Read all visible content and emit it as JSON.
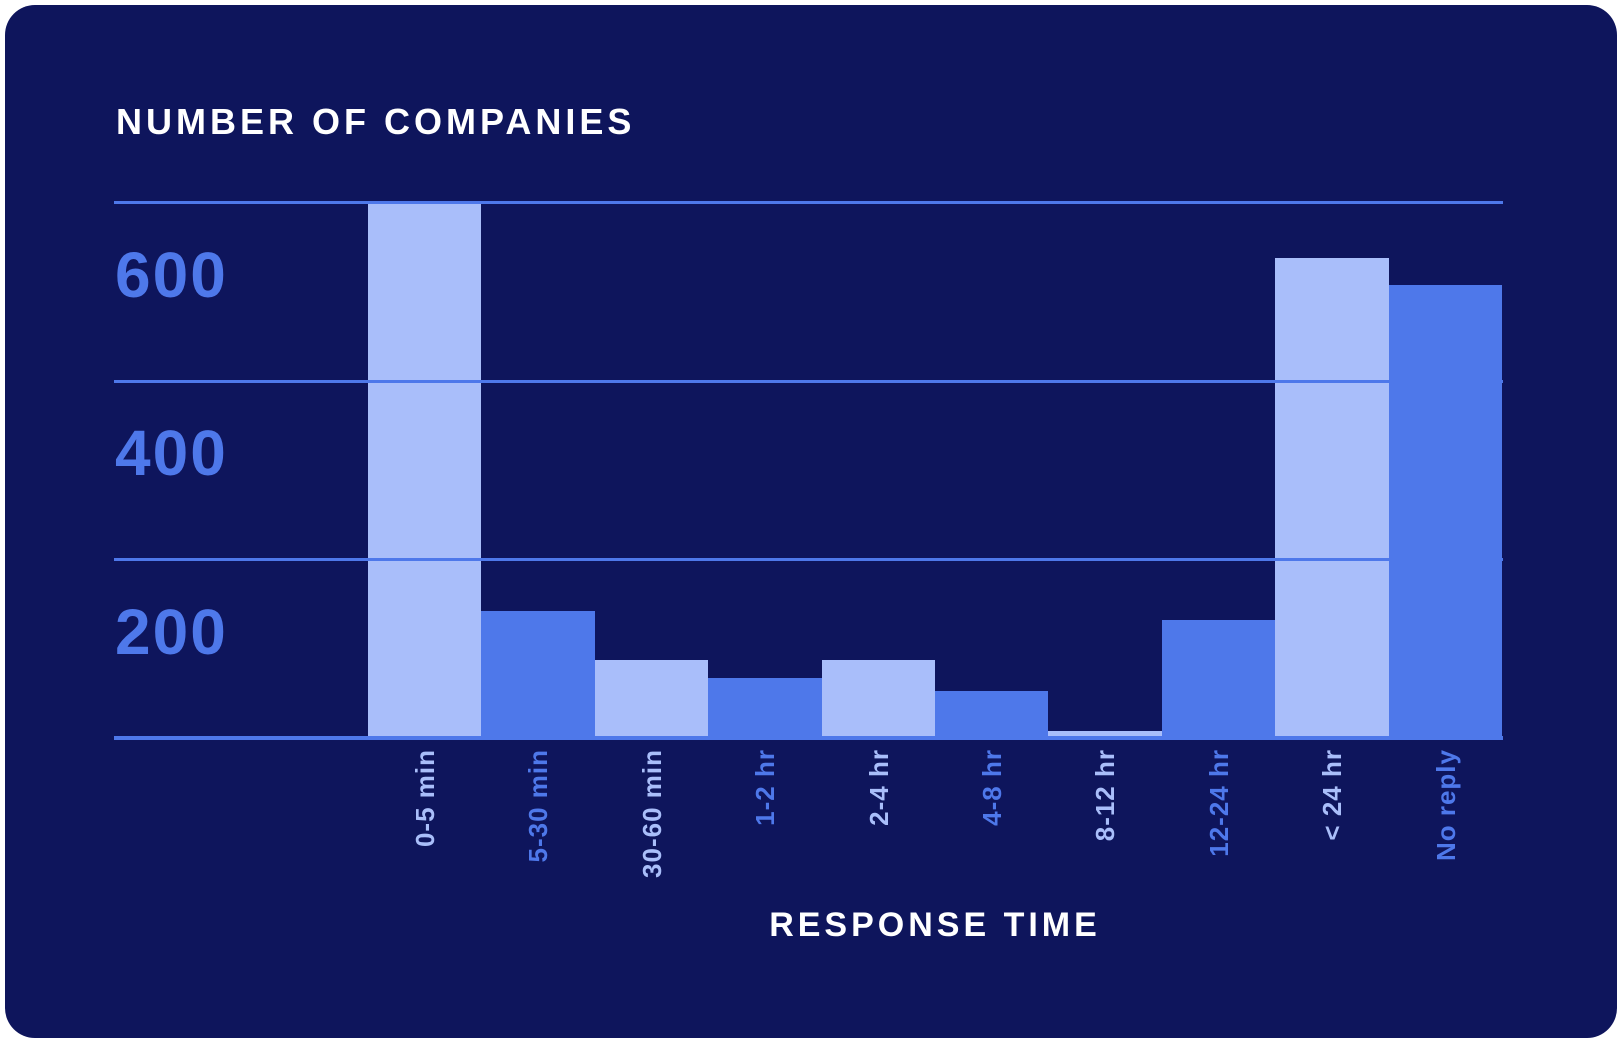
{
  "chart_data": {
    "type": "bar",
    "title": "NUMBER OF COMPANIES",
    "xlabel": "RESPONSE TIME",
    "ylabel": "",
    "categories": [
      "0-5 min",
      "5-30 min",
      "30-60 min",
      "1-2 hr",
      "2-4 hr",
      "4-8 hr",
      "8-12 hr",
      "12-24 hr",
      "< 24 hr",
      "No reply"
    ],
    "values": [
      600,
      145,
      90,
      70,
      90,
      55,
      10,
      135,
      540,
      510
    ],
    "yticks": [
      600,
      400,
      200
    ],
    "ylim": [
      0,
      620
    ],
    "grid": "horizontal",
    "gridline_values": [
      600,
      400,
      200,
      0
    ],
    "legend": "none",
    "bar_color_pattern": "alternating light then medium, starting with light",
    "y_tick_label_position": "below gridline, left side",
    "x_tick_label_rotation": "vertical, reading bottom-to-top"
  },
  "colors": {
    "page_background": "#ffffff",
    "card_background": "#0e155c",
    "bar_light": "#a9befa",
    "bar_medium": "#4e78ea",
    "grid_line": "#4e78ea",
    "y_tick_label": "#4e78ea",
    "x_tick_light": "#a9befa",
    "x_tick_medium": "#4e78ea",
    "title_text": "#ffffff",
    "x_axis_title_text": "#ffffff"
  }
}
